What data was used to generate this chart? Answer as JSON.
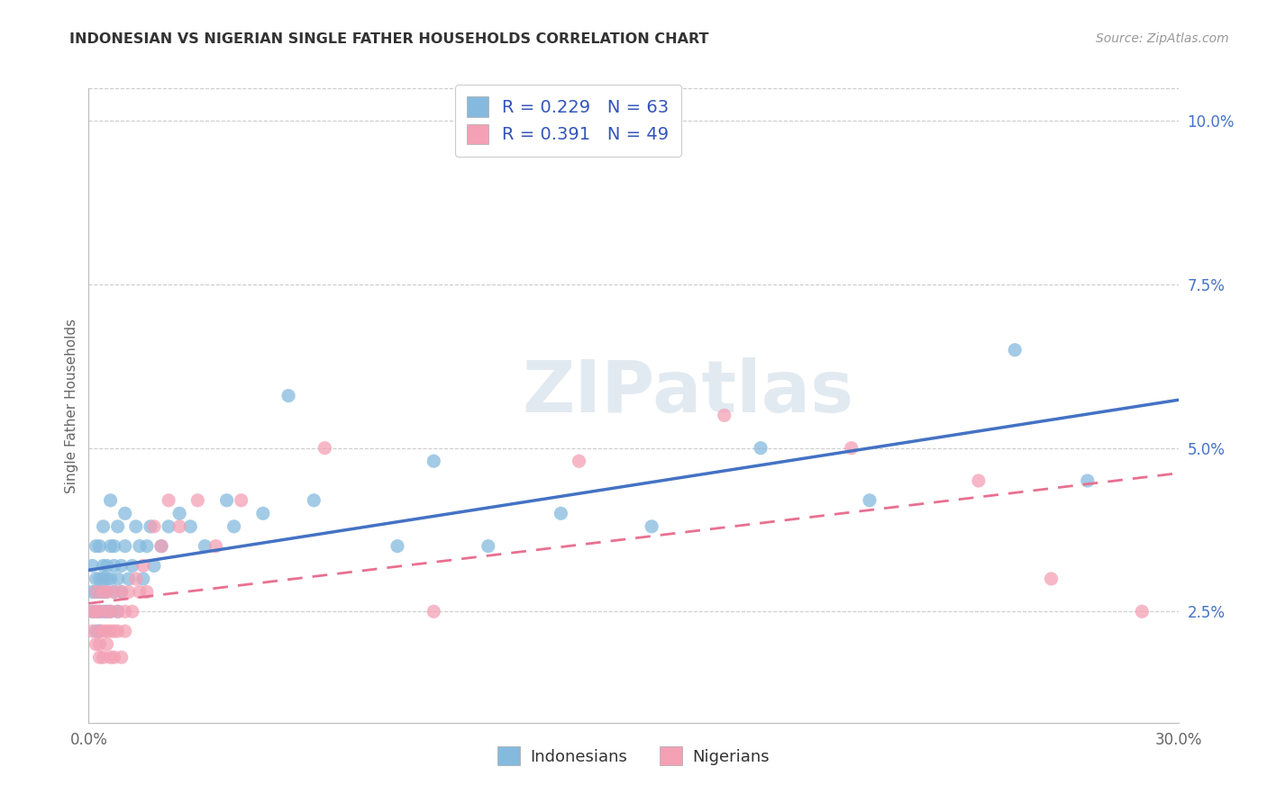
{
  "title": "INDONESIAN VS NIGERIAN SINGLE FATHER HOUSEHOLDS CORRELATION CHART",
  "source": "Source: ZipAtlas.com",
  "ylabel": "Single Father Households",
  "xlim": [
    0.0,
    0.3
  ],
  "ylim": [
    0.008,
    0.105
  ],
  "xticks": [
    0.0,
    0.05,
    0.1,
    0.15,
    0.2,
    0.25,
    0.3
  ],
  "xtick_labels": [
    "0.0%",
    "",
    "",
    "",
    "",
    "",
    "30.0%"
  ],
  "ytick_labels_right": [
    "2.5%",
    "5.0%",
    "7.5%",
    "10.0%"
  ],
  "yticks_right": [
    0.025,
    0.05,
    0.075,
    0.1
  ],
  "R_indonesian": 0.229,
  "N_indonesian": 63,
  "R_nigerian": 0.391,
  "N_nigerian": 49,
  "color_indonesian": "#85BADE",
  "color_nigerian": "#F4A0B5",
  "color_line_indonesian": "#4472C4",
  "color_line_nigerian": "#E87090",
  "legend_label_indonesian": "Indonesians",
  "legend_label_nigerian": "Nigerians",
  "background_color": "#FFFFFF",
  "indonesian_x": [
    0.001,
    0.001,
    0.001,
    0.002,
    0.002,
    0.002,
    0.002,
    0.002,
    0.003,
    0.003,
    0.003,
    0.003,
    0.003,
    0.004,
    0.004,
    0.004,
    0.004,
    0.004,
    0.005,
    0.005,
    0.005,
    0.005,
    0.006,
    0.006,
    0.006,
    0.006,
    0.007,
    0.007,
    0.007,
    0.008,
    0.008,
    0.008,
    0.009,
    0.009,
    0.01,
    0.01,
    0.011,
    0.012,
    0.013,
    0.014,
    0.015,
    0.016,
    0.017,
    0.018,
    0.02,
    0.022,
    0.025,
    0.028,
    0.032,
    0.038,
    0.04,
    0.048,
    0.055,
    0.062,
    0.085,
    0.095,
    0.11,
    0.13,
    0.155,
    0.185,
    0.215,
    0.255,
    0.275
  ],
  "indonesian_y": [
    0.028,
    0.032,
    0.025,
    0.03,
    0.025,
    0.028,
    0.022,
    0.035,
    0.03,
    0.025,
    0.028,
    0.022,
    0.035,
    0.03,
    0.025,
    0.032,
    0.028,
    0.038,
    0.03,
    0.025,
    0.028,
    0.032,
    0.025,
    0.03,
    0.035,
    0.042,
    0.028,
    0.035,
    0.032,
    0.03,
    0.025,
    0.038,
    0.032,
    0.028,
    0.035,
    0.04,
    0.03,
    0.032,
    0.038,
    0.035,
    0.03,
    0.035,
    0.038,
    0.032,
    0.035,
    0.038,
    0.04,
    0.038,
    0.035,
    0.042,
    0.038,
    0.04,
    0.058,
    0.042,
    0.035,
    0.048,
    0.035,
    0.04,
    0.038,
    0.05,
    0.042,
    0.065,
    0.045
  ],
  "nigerian_x": [
    0.001,
    0.001,
    0.002,
    0.002,
    0.002,
    0.003,
    0.003,
    0.003,
    0.003,
    0.004,
    0.004,
    0.004,
    0.005,
    0.005,
    0.005,
    0.005,
    0.006,
    0.006,
    0.006,
    0.007,
    0.007,
    0.007,
    0.008,
    0.008,
    0.009,
    0.009,
    0.01,
    0.01,
    0.011,
    0.012,
    0.013,
    0.014,
    0.015,
    0.016,
    0.018,
    0.02,
    0.022,
    0.025,
    0.03,
    0.035,
    0.042,
    0.065,
    0.095,
    0.135,
    0.175,
    0.21,
    0.245,
    0.265,
    0.29
  ],
  "nigerian_y": [
    0.025,
    0.022,
    0.028,
    0.025,
    0.02,
    0.022,
    0.02,
    0.025,
    0.018,
    0.022,
    0.028,
    0.018,
    0.025,
    0.02,
    0.022,
    0.028,
    0.022,
    0.018,
    0.025,
    0.022,
    0.028,
    0.018,
    0.025,
    0.022,
    0.018,
    0.028,
    0.022,
    0.025,
    0.028,
    0.025,
    0.03,
    0.028,
    0.032,
    0.028,
    0.038,
    0.035,
    0.042,
    0.038,
    0.042,
    0.035,
    0.042,
    0.05,
    0.025,
    0.048,
    0.055,
    0.05,
    0.045,
    0.03,
    0.025
  ]
}
